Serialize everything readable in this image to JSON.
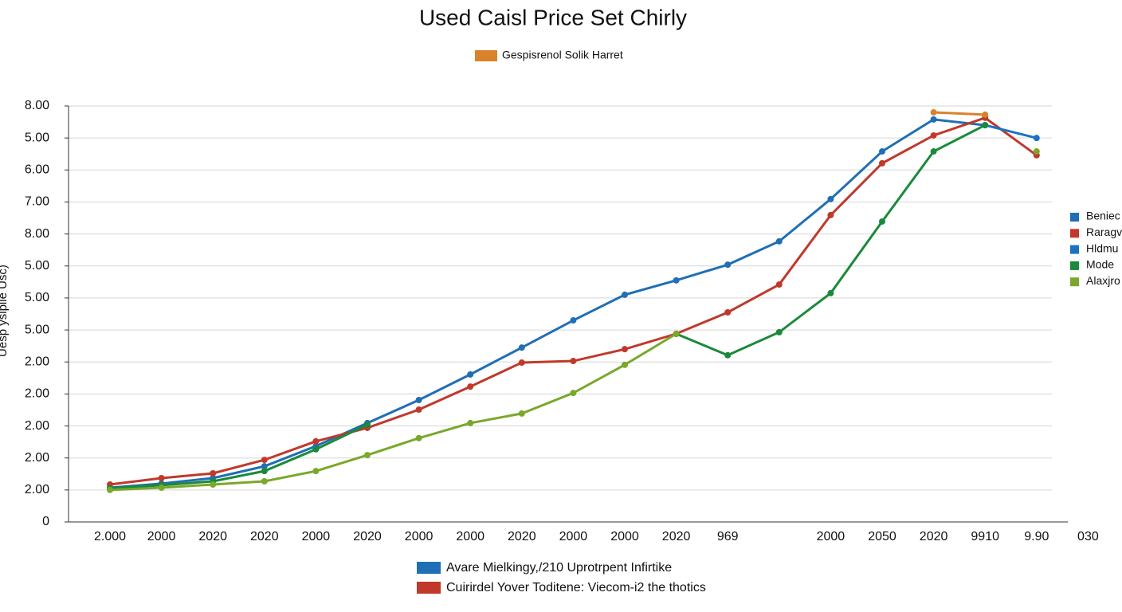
{
  "chart_data": {
    "type": "line",
    "title": "Used Caisl Price Set Chirly",
    "y_label": "Uesp ysiplie Usc)",
    "top_legend": {
      "name": "Gespisrenol Solik Harret",
      "color": "#d9822b"
    },
    "bottom_legend": [
      {
        "name": "Avare Mielkingy,/210 Uprotrpent Infirtike",
        "color": "#1f6fb4"
      },
      {
        "name": "Cuirirdel Yover Toditene: Viecom-i2 the thotics",
        "color": "#c0392b"
      }
    ],
    "categories": [
      "2.000",
      "2000",
      "2020",
      "2020",
      "2000",
      "2020",
      "2000",
      "2000",
      "2020",
      "2000",
      "2000",
      "2020",
      "969",
      null,
      "2000",
      "2050",
      "2020",
      "9910",
      "9.90",
      "030"
    ],
    "ylim": [
      0,
      13
    ],
    "yticks": [
      0,
      {
        "value": 1,
        "label": "2.00"
      },
      {
        "value": 2,
        "label": "2.00"
      },
      {
        "value": 3,
        "label": "2.00"
      },
      {
        "value": 4,
        "label": "2.00"
      },
      {
        "value": 5,
        "label": "2.00"
      },
      {
        "value": 6,
        "label": "5.00"
      },
      {
        "value": 7,
        "label": "5.00"
      },
      {
        "value": 8,
        "label": "5.00"
      },
      {
        "value": 9,
        "label": "8.00"
      },
      {
        "value": 10,
        "label": "7.00"
      },
      {
        "value": 11,
        "label": "6.00"
      },
      {
        "value": 12,
        "label": "5.00"
      },
      {
        "value": 13,
        "label": "8.00"
      }
    ],
    "grid": true,
    "legend": "right",
    "series": [
      {
        "name": "Beniec",
        "color": "#1f6fb4",
        "values": [
          1.07,
          1.2,
          1.37,
          1.74,
          2.37,
          3.09,
          3.81,
          4.61,
          5.45,
          6.3,
          7.1,
          7.55,
          8.04,
          8.77,
          10.09,
          11.58,
          12.58,
          12.4,
          null,
          null
        ]
      },
      {
        "name": "Raragv",
        "color": "#c0392b",
        "values": [
          1.17,
          1.37,
          1.52,
          1.94,
          2.52,
          2.94,
          3.51,
          4.23,
          4.98,
          5.03,
          5.4,
          5.88,
          6.55,
          7.42,
          9.59,
          11.21,
          12.08,
          12.63,
          11.46,
          null
        ]
      },
      {
        "name": "Hldmu",
        "color": "#1a73c0",
        "values": [
          null,
          null,
          null,
          null,
          null,
          null,
          null,
          null,
          null,
          null,
          null,
          null,
          null,
          null,
          null,
          null,
          null,
          12.4,
          12.0,
          null
        ]
      },
      {
        "name": "Mode",
        "color": "#1a8a3a",
        "values": [
          1.05,
          1.15,
          1.27,
          1.59,
          2.27,
          3.04,
          null,
          null,
          null,
          null,
          null,
          5.88,
          5.21,
          5.93,
          7.15,
          9.39,
          11.58,
          12.4,
          null,
          null
        ]
      },
      {
        "name": "Alaxjro",
        "color": "#7aa82a",
        "values": [
          1.0,
          1.07,
          1.17,
          1.27,
          1.59,
          2.09,
          2.62,
          3.09,
          3.39,
          4.03,
          4.91,
          5.88,
          null,
          null,
          null,
          null,
          null,
          null,
          11.58,
          null
        ]
      },
      {
        "name": "Gespisrenol Solik Harret",
        "color": "#d9822b",
        "values": [
          null,
          null,
          null,
          null,
          null,
          null,
          null,
          null,
          null,
          null,
          null,
          null,
          null,
          null,
          null,
          null,
          12.8,
          12.73,
          null,
          null
        ]
      }
    ]
  }
}
